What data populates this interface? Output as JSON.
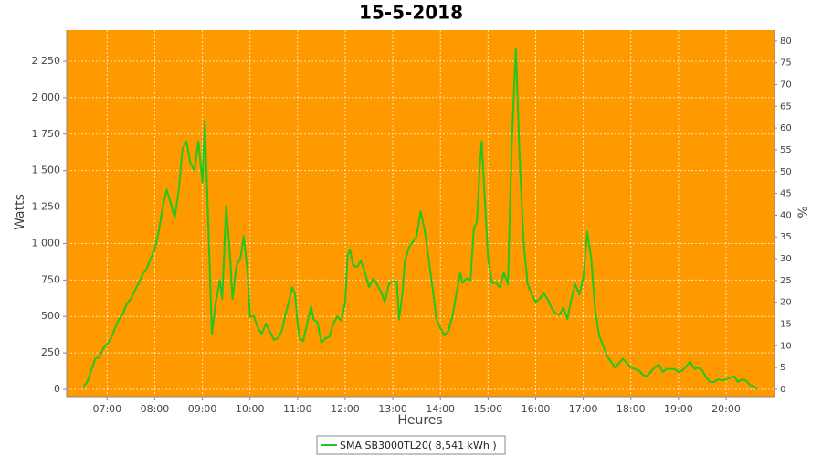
{
  "chart_data": {
    "type": "line",
    "title": "15-5-2018",
    "x_label": "Heures",
    "y_label": "Watts",
    "y2_label": "%",
    "x": [
      "06:30",
      "06:35",
      "06:40",
      "06:45",
      "06:50",
      "06:55",
      "07:00",
      "07:05",
      "07:10",
      "07:15",
      "07:20",
      "07:25",
      "07:30",
      "07:35",
      "07:40",
      "07:45",
      "07:50",
      "07:55",
      "08:00",
      "08:05",
      "08:10",
      "08:15",
      "08:20",
      "08:25",
      "08:30",
      "08:35",
      "08:40",
      "08:45",
      "08:50",
      "08:55",
      "09:00",
      "09:03",
      "09:07",
      "09:12",
      "09:17",
      "09:22",
      "09:25",
      "09:30",
      "09:35",
      "09:38",
      "09:43",
      "09:48",
      "09:52",
      "09:57",
      "10:00",
      "10:05",
      "10:10",
      "10:15",
      "10:20",
      "10:25",
      "10:30",
      "10:35",
      "10:40",
      "10:45",
      "10:50",
      "10:53",
      "10:57",
      "11:00",
      "11:03",
      "11:07",
      "11:12",
      "11:17",
      "11:20",
      "11:25",
      "11:30",
      "11:35",
      "11:40",
      "11:45",
      "11:50",
      "11:55",
      "12:00",
      "12:03",
      "12:06",
      "12:10",
      "12:15",
      "12:20",
      "12:25",
      "12:30",
      "12:35",
      "12:40",
      "12:45",
      "12:50",
      "12:55",
      "13:00",
      "13:05",
      "13:08",
      "13:12",
      "13:15",
      "13:20",
      "13:25",
      "13:30",
      "13:35",
      "13:40",
      "13:45",
      "13:50",
      "13:55",
      "14:00",
      "14:05",
      "14:10",
      "14:15",
      "14:20",
      "14:25",
      "14:28",
      "14:33",
      "14:38",
      "14:42",
      "14:46",
      "14:50",
      "14:52",
      "14:55",
      "15:00",
      "15:05",
      "15:10",
      "15:15",
      "15:20",
      "15:25",
      "15:30",
      "15:35",
      "15:40",
      "15:45",
      "15:50",
      "15:55",
      "16:00",
      "16:05",
      "16:10",
      "16:15",
      "16:20",
      "16:25",
      "16:30",
      "16:35",
      "16:40",
      "16:45",
      "16:50",
      "16:55",
      "17:00",
      "17:05",
      "17:10",
      "17:15",
      "17:20",
      "17:25",
      "17:30",
      "17:35",
      "17:40",
      "17:45",
      "17:50",
      "17:55",
      "18:00",
      "18:05",
      "18:10",
      "18:15",
      "18:20",
      "18:25",
      "18:30",
      "18:35",
      "18:40",
      "18:45",
      "18:50",
      "18:55",
      "19:00",
      "19:05",
      "19:10",
      "19:15",
      "19:20",
      "19:25",
      "19:30",
      "19:35",
      "19:40",
      "19:45",
      "19:50",
      "19:55",
      "20:00",
      "20:05",
      "20:10",
      "20:15",
      "20:20",
      "20:25",
      "20:30",
      "20:35",
      "20:40"
    ],
    "series": [
      {
        "name": "SMA SB3000TL20( 8,541 kWh )",
        "color": "#1ec81e",
        "values": [
          20,
          50,
          130,
          210,
          220,
          280,
          310,
          350,
          420,
          480,
          520,
          590,
          620,
          680,
          730,
          790,
          830,
          900,
          960,
          1080,
          1250,
          1370,
          1280,
          1180,
          1350,
          1650,
          1700,
          1550,
          1500,
          1700,
          1420,
          1840,
          1200,
          380,
          600,
          750,
          620,
          1260,
          900,
          620,
          850,
          900,
          1050,
          800,
          500,
          500,
          420,
          380,
          450,
          400,
          340,
          350,
          400,
          520,
          620,
          700,
          650,
          450,
          350,
          330,
          450,
          570,
          480,
          460,
          320,
          350,
          360,
          450,
          500,
          470,
          600,
          920,
          960,
          850,
          840,
          880,
          800,
          700,
          760,
          720,
          670,
          600,
          720,
          740,
          740,
          480,
          650,
          870,
          970,
          1010,
          1050,
          1220,
          1100,
          900,
          700,
          480,
          420,
          370,
          400,
          500,
          650,
          800,
          730,
          760,
          750,
          1100,
          1150,
          1560,
          1700,
          1400,
          900,
          730,
          730,
          700,
          800,
          720,
          1700,
          2340,
          1560,
          1000,
          720,
          650,
          600,
          620,
          660,
          620,
          560,
          520,
          510,
          560,
          480,
          620,
          720,
          650,
          760,
          1080,
          900,
          550,
          370,
          300,
          230,
          190,
          150,
          180,
          210,
          180,
          150,
          140,
          130,
          100,
          90,
          120,
          150,
          170,
          120,
          140,
          140,
          140,
          120,
          130,
          160,
          190,
          140,
          150,
          130,
          80,
          50,
          50,
          70,
          60,
          70,
          80,
          90,
          50,
          70,
          60,
          30,
          20,
          0
        ]
      }
    ],
    "xlim": [
      "06:09",
      "21:01"
    ],
    "xticks": [
      "07:00",
      "08:00",
      "09:00",
      "10:00",
      "11:00",
      "12:00",
      "13:00",
      "14:00",
      "15:00",
      "16:00",
      "17:00",
      "18:00",
      "19:00",
      "20:00"
    ],
    "ylim": [
      -50,
      2463
    ],
    "yticks": [
      0,
      250,
      500,
      750,
      {
        "value": 1000,
        "label": "1 000"
      },
      {
        "value": 1250,
        "label": "1 250"
      },
      {
        "value": 1500,
        "label": "1 500"
      },
      {
        "value": 1750,
        "label": "1 750"
      },
      {
        "value": 2000,
        "label": "2 000"
      },
      {
        "value": 2250,
        "label": "2 250"
      }
    ],
    "y2lim": [
      -1.7,
      82.5
    ],
    "y2ticks": [
      0,
      5,
      10,
      15,
      20,
      25,
      30,
      35,
      40,
      45,
      50,
      55,
      60,
      65,
      70,
      75,
      80
    ],
    "grid": true,
    "plot_background": "#ff9900",
    "legend": "bottom"
  }
}
